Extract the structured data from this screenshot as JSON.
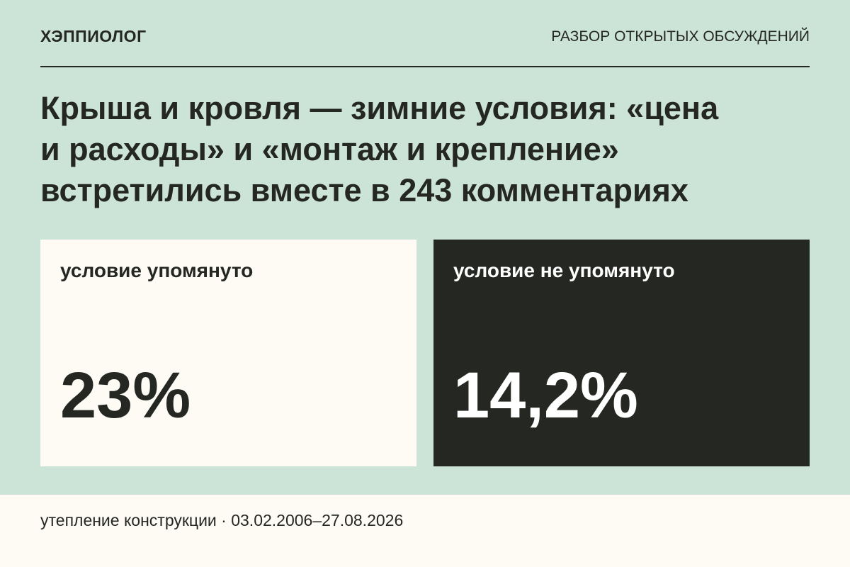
{
  "header": {
    "brand": "ХЭППИОЛОГ",
    "section": "РАЗБОР ОТКРЫТЫХ ОБСУЖДЕНИЙ"
  },
  "title": {
    "lines": [
      "Крыша и кровля — зимние условия: «цена",
      "и расходы» и «монтаж и крепление»",
      "встретились вместе в 243 комментариях"
    ]
  },
  "cards": [
    {
      "label": "условие упомянуто",
      "value": "23%"
    },
    {
      "label": "условие не упомянуто",
      "value": "14,2%"
    }
  ],
  "footer": {
    "text": "утепление конструкции · 03.02.2006–27.08.2026"
  }
}
